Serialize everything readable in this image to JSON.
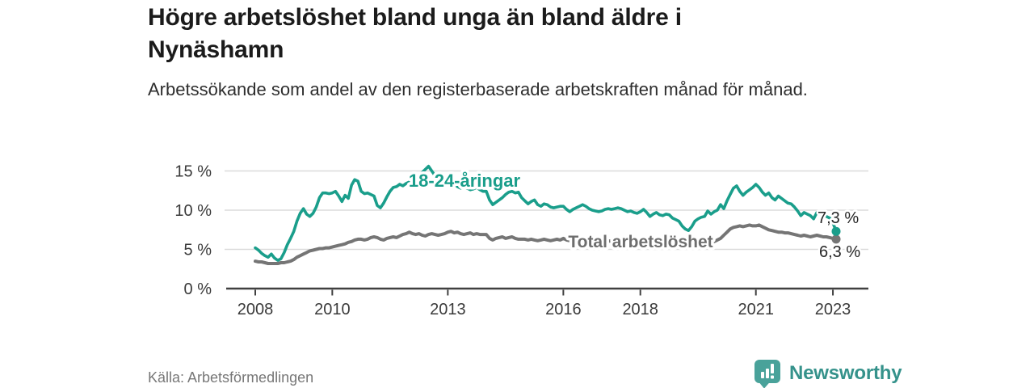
{
  "header": {
    "title": "Högre arbetslöshet bland unga än bland äldre i Nynäshamn",
    "subtitle": "Arbetssökande som andel av den registerbaserade arbetskraften månad för månad."
  },
  "footer": {
    "source": "Källa: Arbetsförmedlingen",
    "brand_name": "Newsworthy",
    "brand_icon": "newsworthy-speech-bubble-bar-chart-icon",
    "brand_color": "#49a29a"
  },
  "chart_data": {
    "type": "line",
    "title": "Högre arbetslöshet bland unga än bland äldre i Nynäshamn",
    "subtitle": "Arbetssökande som andel av den registerbaserade arbetskraften månad för månad.",
    "source": "Källa: Arbetsförmedlingen",
    "grid": true,
    "legend_position": "inline-labels",
    "x_axis": {
      "label": "",
      "tick_years": [
        2008,
        2010,
        2013,
        2016,
        2018,
        2021,
        2023
      ],
      "start": 2008.0,
      "end": 2023.08
    },
    "y_axis": {
      "label": "",
      "ticks": [
        0,
        5,
        10,
        15
      ],
      "tick_suffix": " %",
      "range": [
        0,
        16.3
      ]
    },
    "colors": {
      "youth": "#1a9e8b",
      "total": "#757575",
      "grid": "#dbdbdb",
      "axis": "#404040",
      "end_label_text": "#262626"
    },
    "series": [
      {
        "name": "18-24-åringar",
        "color": "#1a9e8b",
        "start_year": 2008,
        "interval_months": 1,
        "end_label": "7,3 %",
        "end_value": 7.3,
        "values": [
          5.2,
          4.9,
          4.5,
          4.2,
          4.0,
          4.4,
          3.9,
          3.6,
          3.8,
          4.6,
          5.6,
          6.4,
          7.3,
          8.6,
          9.6,
          10.2,
          9.5,
          9.2,
          9.6,
          10.4,
          11.6,
          12.2,
          12.2,
          12.1,
          12.2,
          12.4,
          11.8,
          11.1,
          11.9,
          11.5,
          13.2,
          13.9,
          13.7,
          12.4,
          12.1,
          12.2,
          12.0,
          11.8,
          10.6,
          10.3,
          10.9,
          11.7,
          12.4,
          12.9,
          13.0,
          13.3,
          13.1,
          13.4,
          13.6,
          13.8,
          14.1,
          14.4,
          14.8,
          15.2,
          15.6,
          15.0,
          14.4,
          13.9,
          13.6,
          13.3,
          13.5,
          13.8,
          13.4,
          13.0,
          12.8,
          13.0,
          12.8,
          12.6,
          12.7,
          12.9,
          12.6,
          12.4,
          12.4,
          11.3,
          10.7,
          11.0,
          11.3,
          11.6,
          12.0,
          12.3,
          12.4,
          12.2,
          12.3,
          11.6,
          11.2,
          10.8,
          11.1,
          11.3,
          10.7,
          10.5,
          10.8,
          10.7,
          10.4,
          10.3,
          10.4,
          10.5,
          10.5,
          10.1,
          9.8,
          10.1,
          10.3,
          10.5,
          10.7,
          10.5,
          10.2,
          10.0,
          9.9,
          9.8,
          9.9,
          10.1,
          10.2,
          10.1,
          10.2,
          10.3,
          10.2,
          10.0,
          9.8,
          9.9,
          9.7,
          9.6,
          9.8,
          10.1,
          9.7,
          9.2,
          9.5,
          9.7,
          9.4,
          9.3,
          9.5,
          9.4,
          9.0,
          8.8,
          8.6,
          8.0,
          7.6,
          7.4,
          7.9,
          8.6,
          8.9,
          9.1,
          9.2,
          9.9,
          9.5,
          9.8,
          10.0,
          10.7,
          10.2,
          11.2,
          12.0,
          12.8,
          13.1,
          12.4,
          11.9,
          12.3,
          12.6,
          12.9,
          13.3,
          12.9,
          12.3,
          11.9,
          12.2,
          11.6,
          11.3,
          11.8,
          11.5,
          11.2,
          10.9,
          10.8,
          10.4,
          9.9,
          9.3,
          9.7,
          9.5,
          9.3,
          8.9,
          9.7,
          9.6,
          9.4,
          9.2,
          9.0,
          8.4,
          7.3
        ]
      },
      {
        "name": "Total arbetslöshet",
        "color": "#757575",
        "start_year": 2008,
        "interval_months": 1,
        "end_label": "6,3 %",
        "end_value": 6.3,
        "values": [
          3.5,
          3.4,
          3.4,
          3.3,
          3.2,
          3.2,
          3.2,
          3.2,
          3.3,
          3.3,
          3.4,
          3.5,
          3.7,
          4.0,
          4.2,
          4.4,
          4.6,
          4.8,
          4.9,
          5.0,
          5.1,
          5.1,
          5.2,
          5.2,
          5.3,
          5.4,
          5.5,
          5.6,
          5.7,
          5.9,
          6.0,
          6.2,
          6.3,
          6.3,
          6.2,
          6.3,
          6.5,
          6.6,
          6.5,
          6.3,
          6.2,
          6.4,
          6.5,
          6.6,
          6.5,
          6.7,
          6.9,
          7.0,
          7.2,
          7.0,
          6.9,
          7.0,
          6.8,
          6.7,
          6.9,
          7.0,
          6.9,
          6.8,
          6.9,
          7.0,
          7.2,
          7.3,
          7.1,
          7.2,
          7.0,
          6.9,
          7.0,
          7.1,
          6.9,
          7.0,
          6.9,
          6.9,
          6.9,
          6.4,
          6.2,
          6.4,
          6.5,
          6.6,
          6.4,
          6.5,
          6.6,
          6.4,
          6.3,
          6.3,
          6.3,
          6.2,
          6.3,
          6.2,
          6.1,
          6.2,
          6.3,
          6.2,
          6.1,
          6.2,
          6.3,
          6.2,
          6.4,
          6.2,
          6.1,
          6.2,
          6.3,
          6.2,
          6.1,
          6.0,
          6.1,
          6.2,
          6.1,
          6.0,
          5.9,
          6.0,
          6.1,
          6.0,
          5.9,
          5.8,
          5.9,
          6.0,
          5.9,
          5.8,
          5.9,
          5.8,
          5.8,
          5.9,
          5.8,
          5.7,
          5.6,
          5.7,
          5.8,
          5.7,
          5.6,
          5.7,
          5.6,
          5.5,
          5.5,
          5.4,
          5.3,
          5.4,
          5.5,
          5.6,
          5.7,
          5.8,
          5.7,
          5.8,
          5.9,
          6.0,
          6.2,
          6.4,
          6.8,
          7.2,
          7.6,
          7.8,
          7.9,
          8.0,
          7.9,
          8.0,
          8.1,
          8.0,
          8.0,
          8.1,
          7.9,
          7.7,
          7.5,
          7.4,
          7.3,
          7.2,
          7.2,
          7.1,
          7.1,
          7.0,
          6.9,
          6.8,
          6.7,
          6.8,
          6.7,
          6.6,
          6.7,
          6.8,
          6.7,
          6.6,
          6.6,
          6.5,
          6.4,
          6.3
        ]
      }
    ]
  }
}
